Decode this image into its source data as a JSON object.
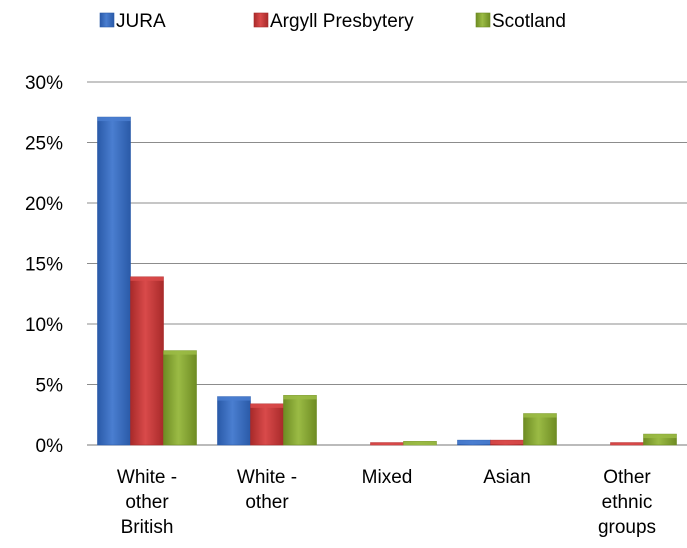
{
  "chart_data": {
    "type": "bar",
    "categories": [
      [
        "White -",
        "other",
        "British"
      ],
      [
        "White -",
        "other"
      ],
      [
        "Mixed"
      ],
      [
        "Asian"
      ],
      [
        "Other",
        "ethnic",
        "groups"
      ]
    ],
    "series": [
      {
        "name": "JURA",
        "values": [
          27.1,
          4.0,
          0.0,
          0.4,
          0.0
        ]
      },
      {
        "name": "Argyll Presbytery",
        "values": [
          13.9,
          3.4,
          0.2,
          0.4,
          0.2
        ]
      },
      {
        "name": "Scotland",
        "values": [
          7.8,
          4.1,
          0.3,
          2.6,
          0.9
        ]
      }
    ],
    "y_ticks": [
      "0%",
      "5%",
      "10%",
      "15%",
      "20%",
      "25%",
      "30%"
    ],
    "ylim": [
      0,
      30
    ],
    "grid": true,
    "legend_position": "top",
    "colors": {
      "JURA": "#4a7ed0",
      "Argyll Presbytery": "#d94a4a",
      "Scotland": "#9bbb45"
    },
    "colors_dark": {
      "JURA": "#2a5aa8",
      "Argyll Presbytery": "#a82a2a",
      "Scotland": "#6e8c23"
    }
  }
}
